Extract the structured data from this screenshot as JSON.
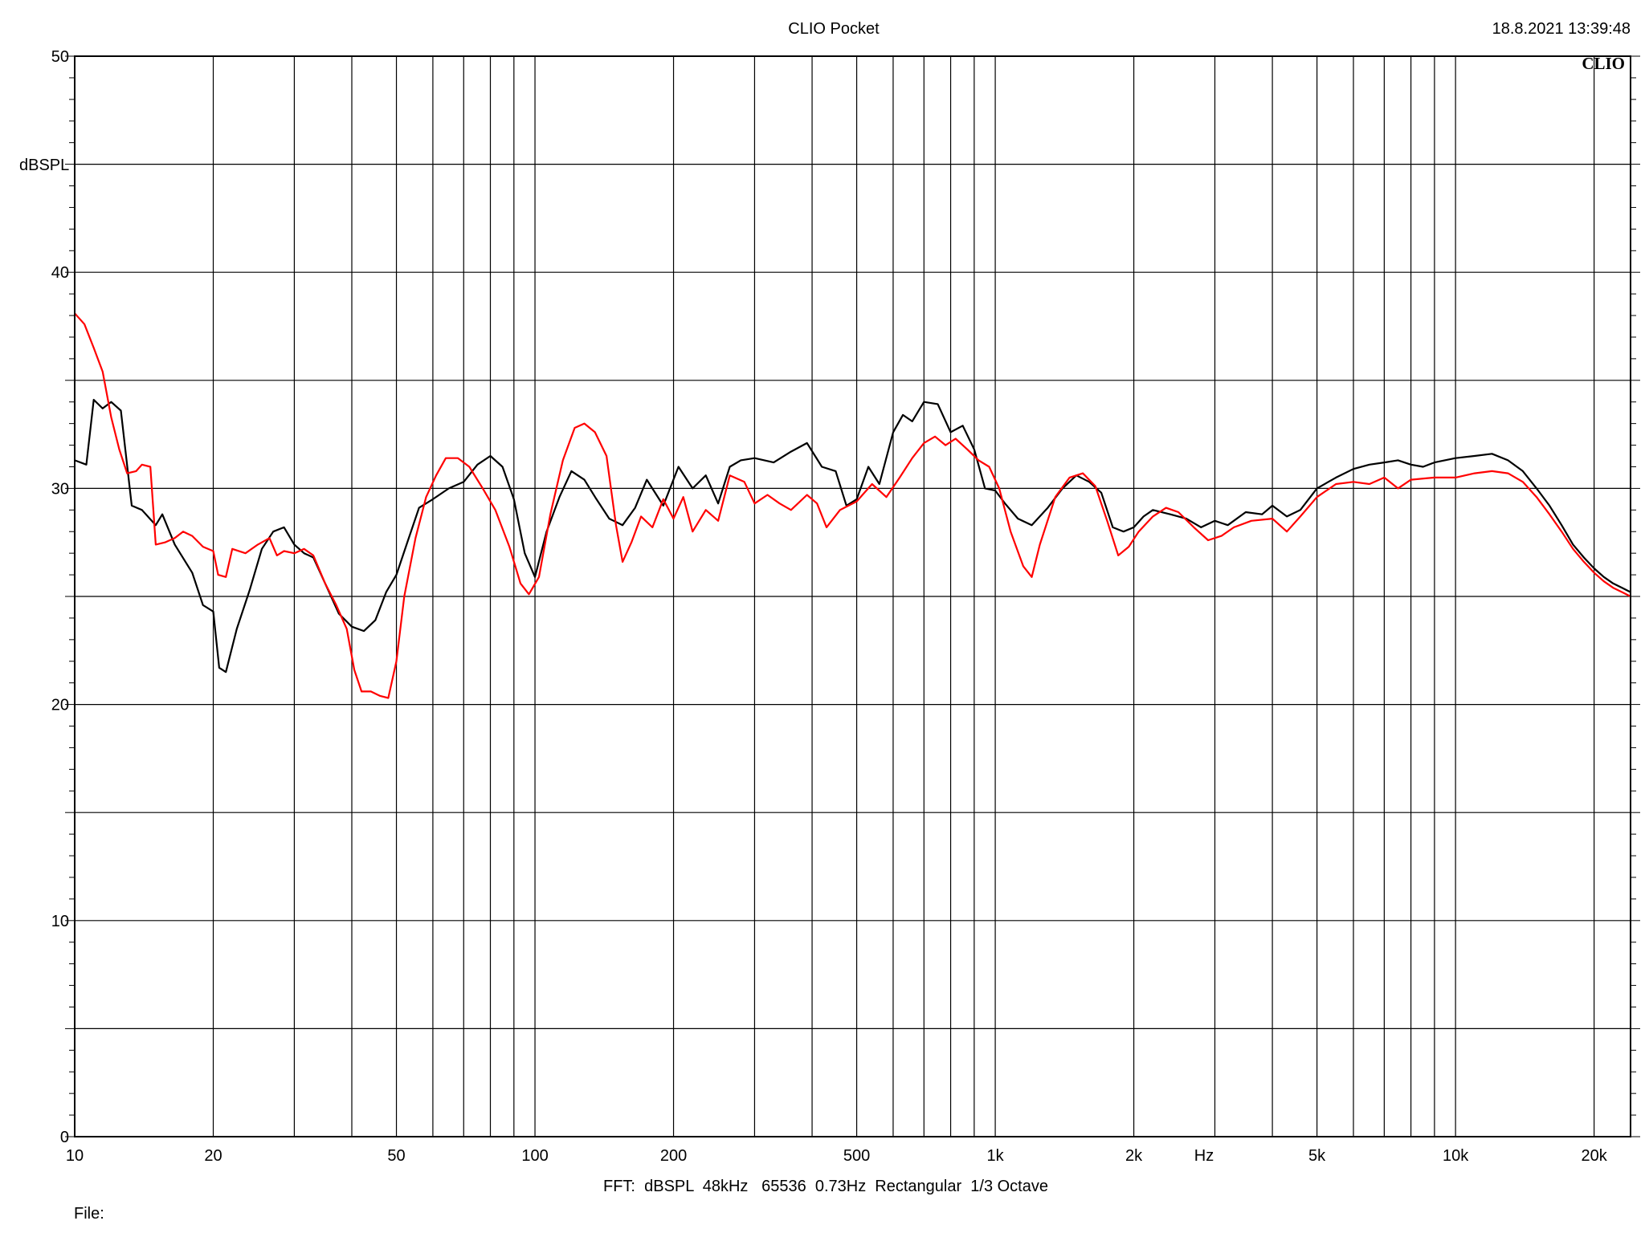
{
  "header": {
    "title": "CLIO Pocket",
    "timestamp": "18.8.2021 13:39:48",
    "logo": "CLIO"
  },
  "footer": {
    "settings": "FFT:  dBSPL  48kHz   65536  0.73Hz  Rectangular  1/3 Octave",
    "file_label": "File:"
  },
  "chart_data": {
    "type": "line",
    "x_scale": "log",
    "xlim": [
      10,
      24000
    ],
    "ylim": [
      0,
      50
    ],
    "ylabel": "dBSPL",
    "xlabel": "Hz",
    "grid": true,
    "y_ticks": [
      {
        "value": 0,
        "label": "0"
      },
      {
        "value": 10,
        "label": "10"
      },
      {
        "value": 20,
        "label": "20"
      },
      {
        "value": 30,
        "label": "30"
      },
      {
        "value": 40,
        "label": "40"
      },
      {
        "value": 50,
        "label": "50"
      }
    ],
    "y_grid": [
      5,
      10,
      15,
      20,
      25,
      30,
      35,
      40,
      45
    ],
    "x_grid": [
      20,
      30,
      40,
      50,
      60,
      70,
      80,
      90,
      100,
      200,
      300,
      400,
      500,
      600,
      700,
      800,
      900,
      1000,
      2000,
      3000,
      4000,
      5000,
      6000,
      7000,
      8000,
      9000,
      10000,
      20000
    ],
    "x_ticks": [
      {
        "value": 10,
        "label": "10"
      },
      {
        "value": 20,
        "label": "20"
      },
      {
        "value": 50,
        "label": "50"
      },
      {
        "value": 100,
        "label": "100"
      },
      {
        "value": 200,
        "label": "200"
      },
      {
        "value": 500,
        "label": "500"
      },
      {
        "value": 1000,
        "label": "1k"
      },
      {
        "value": 2000,
        "label": "2k"
      },
      {
        "value": 5000,
        "label": "5k"
      },
      {
        "value": 10000,
        "label": "10k"
      },
      {
        "value": 20000,
        "label": "20k"
      }
    ],
    "series": [
      {
        "color": "#000000",
        "points": [
          [
            10,
            31.3
          ],
          [
            10.6,
            31.1
          ],
          [
            11.0,
            34.1
          ],
          [
            11.5,
            33.7
          ],
          [
            12.0,
            34.0
          ],
          [
            12.6,
            33.6
          ],
          [
            13.3,
            29.2
          ],
          [
            14.0,
            29.0
          ],
          [
            15.0,
            28.3
          ],
          [
            15.5,
            28.8
          ],
          [
            16.5,
            27.4
          ],
          [
            18.0,
            26.1
          ],
          [
            19.0,
            24.6
          ],
          [
            20.0,
            24.3
          ],
          [
            20.6,
            21.7
          ],
          [
            21.3,
            21.5
          ],
          [
            22.5,
            23.5
          ],
          [
            24.0,
            25.3
          ],
          [
            25.5,
            27.2
          ],
          [
            27.0,
            28.0
          ],
          [
            28.5,
            28.2
          ],
          [
            30.0,
            27.4
          ],
          [
            31.5,
            27.0
          ],
          [
            33.0,
            26.8
          ],
          [
            35.0,
            25.6
          ],
          [
            37.5,
            24.2
          ],
          [
            40.0,
            23.6
          ],
          [
            42.5,
            23.4
          ],
          [
            45.0,
            23.9
          ],
          [
            47.5,
            25.2
          ],
          [
            50.0,
            26.0
          ],
          [
            53.0,
            27.6
          ],
          [
            56.0,
            29.1
          ],
          [
            60.0,
            29.5
          ],
          [
            65.0,
            30.0
          ],
          [
            70.0,
            30.3
          ],
          [
            75.0,
            31.1
          ],
          [
            80.0,
            31.5
          ],
          [
            85.0,
            31.0
          ],
          [
            90.0,
            29.5
          ],
          [
            95.0,
            27.0
          ],
          [
            100.0,
            25.9
          ],
          [
            106.0,
            28.0
          ],
          [
            113.0,
            29.6
          ],
          [
            120.0,
            30.8
          ],
          [
            128.0,
            30.4
          ],
          [
            136.0,
            29.5
          ],
          [
            145.0,
            28.6
          ],
          [
            155.0,
            28.3
          ],
          [
            165.0,
            29.1
          ],
          [
            175.0,
            30.4
          ],
          [
            190.0,
            29.2
          ],
          [
            205.0,
            31.0
          ],
          [
            220.0,
            30.0
          ],
          [
            235.0,
            30.6
          ],
          [
            250.0,
            29.3
          ],
          [
            265.0,
            31.0
          ],
          [
            280.0,
            31.3
          ],
          [
            300.0,
            31.4
          ],
          [
            330.0,
            31.2
          ],
          [
            360.0,
            31.7
          ],
          [
            390.0,
            32.1
          ],
          [
            420.0,
            31.0
          ],
          [
            450.0,
            30.8
          ],
          [
            475.0,
            29.2
          ],
          [
            500.0,
            29.5
          ],
          [
            530.0,
            31.0
          ],
          [
            560.0,
            30.2
          ],
          [
            600.0,
            32.6
          ],
          [
            630.0,
            33.4
          ],
          [
            660.0,
            33.1
          ],
          [
            700.0,
            34.0
          ],
          [
            750.0,
            33.9
          ],
          [
            800.0,
            32.6
          ],
          [
            850.0,
            32.9
          ],
          [
            900.0,
            31.8
          ],
          [
            950.0,
            30.0
          ],
          [
            1000.0,
            29.9
          ],
          [
            1050.0,
            29.3
          ],
          [
            1120.0,
            28.6
          ],
          [
            1200.0,
            28.3
          ],
          [
            1300.0,
            29.1
          ],
          [
            1400.0,
            30.0
          ],
          [
            1500.0,
            30.6
          ],
          [
            1600.0,
            30.3
          ],
          [
            1700.0,
            29.8
          ],
          [
            1800.0,
            28.2
          ],
          [
            1900.0,
            28.0
          ],
          [
            2000.0,
            28.2
          ],
          [
            2100.0,
            28.7
          ],
          [
            2200.0,
            29.0
          ],
          [
            2400.0,
            28.8
          ],
          [
            2600.0,
            28.6
          ],
          [
            2800.0,
            28.2
          ],
          [
            3000.0,
            28.5
          ],
          [
            3200.0,
            28.3
          ],
          [
            3500.0,
            28.9
          ],
          [
            3800.0,
            28.8
          ],
          [
            4000.0,
            29.2
          ],
          [
            4300.0,
            28.7
          ],
          [
            4600.0,
            29.0
          ],
          [
            5000.0,
            30.0
          ],
          [
            5500.0,
            30.5
          ],
          [
            6000.0,
            30.9
          ],
          [
            6500.0,
            31.1
          ],
          [
            7000.0,
            31.2
          ],
          [
            7500.0,
            31.3
          ],
          [
            8000.0,
            31.1
          ],
          [
            8500.0,
            31.0
          ],
          [
            9000.0,
            31.2
          ],
          [
            10000.0,
            31.4
          ],
          [
            11000.0,
            31.5
          ],
          [
            12000.0,
            31.6
          ],
          [
            13000.0,
            31.3
          ],
          [
            14000.0,
            30.8
          ],
          [
            15000.0,
            30.0
          ],
          [
            16000.0,
            29.2
          ],
          [
            17000.0,
            28.3
          ],
          [
            18000.0,
            27.4
          ],
          [
            19000.0,
            26.8
          ],
          [
            20000.0,
            26.3
          ],
          [
            21000.0,
            25.9
          ],
          [
            22000.0,
            25.6
          ],
          [
            23000.0,
            25.4
          ],
          [
            24000.0,
            25.2
          ]
        ]
      },
      {
        "color": "#ff0000",
        "points": [
          [
            10,
            38.1
          ],
          [
            10.5,
            37.6
          ],
          [
            11.0,
            36.5
          ],
          [
            11.5,
            35.4
          ],
          [
            12.0,
            33.3
          ],
          [
            12.5,
            31.8
          ],
          [
            13.0,
            30.7
          ],
          [
            13.6,
            30.8
          ],
          [
            14.0,
            31.1
          ],
          [
            14.6,
            31.0
          ],
          [
            15.0,
            27.4
          ],
          [
            15.7,
            27.5
          ],
          [
            16.5,
            27.7
          ],
          [
            17.2,
            28.0
          ],
          [
            18.0,
            27.8
          ],
          [
            19.0,
            27.3
          ],
          [
            20.0,
            27.1
          ],
          [
            20.5,
            26.0
          ],
          [
            21.3,
            25.9
          ],
          [
            22.0,
            27.2
          ],
          [
            23.5,
            27.0
          ],
          [
            25.0,
            27.4
          ],
          [
            26.5,
            27.7
          ],
          [
            27.5,
            26.9
          ],
          [
            28.5,
            27.1
          ],
          [
            30.0,
            27.0
          ],
          [
            31.5,
            27.2
          ],
          [
            33.0,
            26.9
          ],
          [
            35.0,
            25.6
          ],
          [
            37.0,
            24.6
          ],
          [
            39.0,
            23.5
          ],
          [
            40.5,
            21.6
          ],
          [
            42.0,
            20.6
          ],
          [
            44.0,
            20.6
          ],
          [
            46.0,
            20.4
          ],
          [
            48.0,
            20.3
          ],
          [
            50.0,
            22.0
          ],
          [
            52.0,
            25.0
          ],
          [
            55.0,
            27.7
          ],
          [
            58.0,
            29.6
          ],
          [
            61.0,
            30.6
          ],
          [
            64.0,
            31.4
          ],
          [
            68.0,
            31.4
          ],
          [
            72.0,
            31.0
          ],
          [
            77.0,
            30.0
          ],
          [
            82.0,
            29.0
          ],
          [
            88.0,
            27.3
          ],
          [
            93.0,
            25.6
          ],
          [
            97.0,
            25.1
          ],
          [
            102.0,
            25.9
          ],
          [
            108.0,
            28.8
          ],
          [
            115.0,
            31.3
          ],
          [
            122.0,
            32.8
          ],
          [
            128.0,
            33.0
          ],
          [
            135.0,
            32.6
          ],
          [
            143.0,
            31.5
          ],
          [
            150.0,
            28.3
          ],
          [
            155.0,
            26.6
          ],
          [
            162.0,
            27.5
          ],
          [
            170.0,
            28.7
          ],
          [
            180.0,
            28.2
          ],
          [
            190.0,
            29.5
          ],
          [
            200.0,
            28.6
          ],
          [
            210.0,
            29.6
          ],
          [
            220.0,
            28.0
          ],
          [
            235.0,
            29.0
          ],
          [
            250.0,
            28.5
          ],
          [
            265.0,
            30.6
          ],
          [
            285.0,
            30.3
          ],
          [
            300.0,
            29.3
          ],
          [
            320.0,
            29.7
          ],
          [
            340.0,
            29.3
          ],
          [
            360.0,
            29.0
          ],
          [
            390.0,
            29.7
          ],
          [
            410.0,
            29.3
          ],
          [
            430.0,
            28.2
          ],
          [
            460.0,
            29.0
          ],
          [
            500.0,
            29.4
          ],
          [
            540.0,
            30.2
          ],
          [
            580.0,
            29.6
          ],
          [
            620.0,
            30.5
          ],
          [
            660.0,
            31.4
          ],
          [
            700.0,
            32.1
          ],
          [
            740.0,
            32.4
          ],
          [
            780.0,
            32.0
          ],
          [
            820.0,
            32.3
          ],
          [
            870.0,
            31.8
          ],
          [
            920.0,
            31.3
          ],
          [
            970.0,
            31.0
          ],
          [
            1020.0,
            30.0
          ],
          [
            1080.0,
            28.0
          ],
          [
            1150.0,
            26.4
          ],
          [
            1200.0,
            25.9
          ],
          [
            1250.0,
            27.4
          ],
          [
            1350.0,
            29.6
          ],
          [
            1450.0,
            30.5
          ],
          [
            1550.0,
            30.7
          ],
          [
            1650.0,
            30.1
          ],
          [
            1750.0,
            28.5
          ],
          [
            1850.0,
            26.9
          ],
          [
            1950.0,
            27.3
          ],
          [
            2050.0,
            28.0
          ],
          [
            2200.0,
            28.7
          ],
          [
            2350.0,
            29.1
          ],
          [
            2500.0,
            28.9
          ],
          [
            2700.0,
            28.2
          ],
          [
            2900.0,
            27.6
          ],
          [
            3100.0,
            27.8
          ],
          [
            3300.0,
            28.2
          ],
          [
            3600.0,
            28.5
          ],
          [
            4000.0,
            28.6
          ],
          [
            4300.0,
            28.0
          ],
          [
            4600.0,
            28.7
          ],
          [
            5000.0,
            29.6
          ],
          [
            5500.0,
            30.2
          ],
          [
            6000.0,
            30.3
          ],
          [
            6500.0,
            30.2
          ],
          [
            7000.0,
            30.5
          ],
          [
            7500.0,
            30.0
          ],
          [
            8000.0,
            30.4
          ],
          [
            9000.0,
            30.5
          ],
          [
            10000.0,
            30.5
          ],
          [
            11000.0,
            30.7
          ],
          [
            12000.0,
            30.8
          ],
          [
            13000.0,
            30.7
          ],
          [
            14000.0,
            30.3
          ],
          [
            15000.0,
            29.6
          ],
          [
            16000.0,
            28.8
          ],
          [
            17000.0,
            28.0
          ],
          [
            18000.0,
            27.2
          ],
          [
            19000.0,
            26.6
          ],
          [
            20000.0,
            26.1
          ],
          [
            21000.0,
            25.7
          ],
          [
            22000.0,
            25.4
          ],
          [
            23000.0,
            25.2
          ],
          [
            24000.0,
            25.0
          ]
        ]
      }
    ]
  }
}
